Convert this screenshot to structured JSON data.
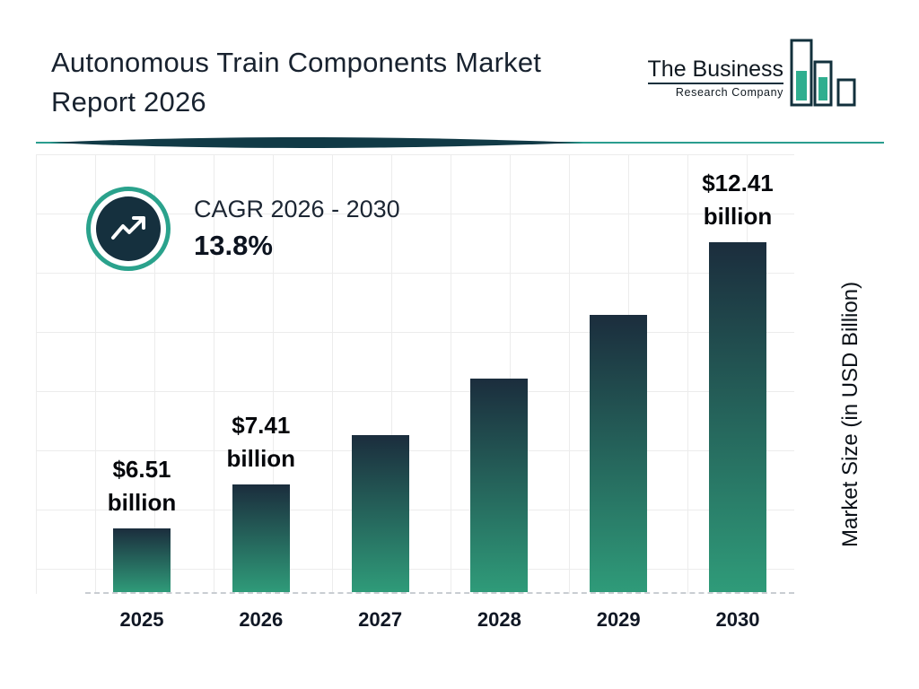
{
  "header": {
    "title_line1": "Autonomous Train Components Market",
    "title_line2": "Report 2026"
  },
  "logo": {
    "name_line1": "The Business",
    "name_line2": "Research Company"
  },
  "cagr_badge": {
    "label": "CAGR 2026 - 2030",
    "value": "13.8%",
    "icon": "trend-up-arrow-icon"
  },
  "chart_data": {
    "type": "bar",
    "title": "Autonomous Train Components Market Report 2026",
    "categories": [
      "2025",
      "2026",
      "2027",
      "2028",
      "2029",
      "2030"
    ],
    "values": [
      6.51,
      7.41,
      8.43,
      9.6,
      10.92,
      12.41
    ],
    "value_labels": [
      {
        "amount": "$6.51",
        "unit": "billion"
      },
      {
        "amount": "$7.41",
        "unit": "billion"
      },
      null,
      null,
      null,
      {
        "amount": "$12.41",
        "unit": "billion"
      }
    ],
    "xlabel": "",
    "ylabel": "Market Size (in USD Billion)",
    "axis_min": 5.2,
    "axis_max": 12.41,
    "grid": true,
    "legend": "none",
    "bar_color_top": "#1b2d3d",
    "bar_color_bottom": "#2f9b79"
  },
  "colors": {
    "accent_teal": "#2aa28c",
    "dark_navy": "#15303e",
    "grid": "#ececec",
    "title_text": "#18222f"
  }
}
